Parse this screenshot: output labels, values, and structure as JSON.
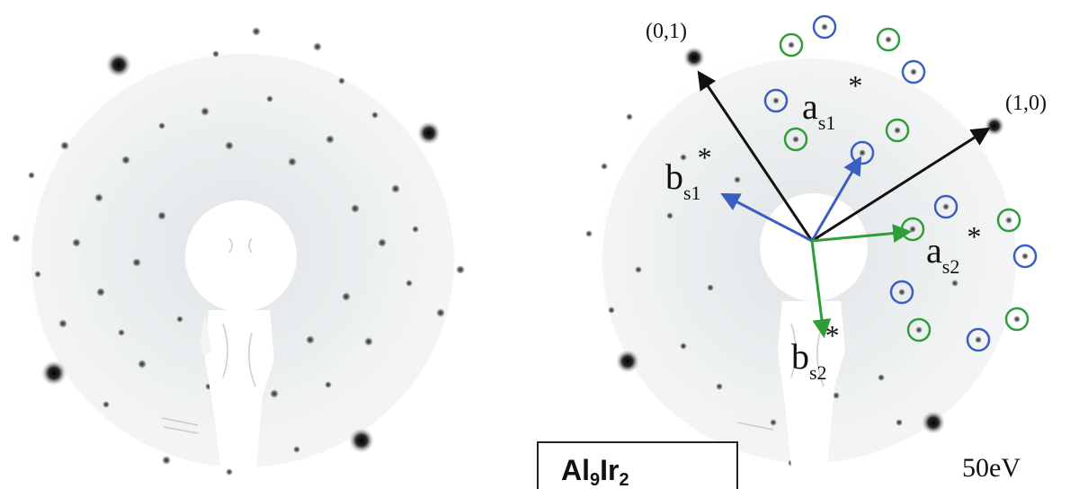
{
  "colors": {
    "primary_vectors": "#111111",
    "surface1_vectors": "#3b5fc0",
    "surface2_vectors": "#2f9e3a",
    "spot": "#1a1a1a",
    "halo": "#cfd3d6",
    "beam_stop": "#ffffff"
  },
  "labels": {
    "spot_01": "(0,1)",
    "spot_10": "(1,0)",
    "a_s1": {
      "base": "a",
      "sub": "s1",
      "sup": "*"
    },
    "b_s1": {
      "base": "b",
      "sub": "s1",
      "sup": "*"
    },
    "a_s2": {
      "base": "a",
      "sub": "s2",
      "sup": "*"
    },
    "b_s2": {
      "base": "b",
      "sub": "s2",
      "sup": "*"
    },
    "energy": "50eV",
    "material": {
      "part1": "Al",
      "sub1": "9",
      "part2": "Ir",
      "sub2": "2"
    }
  },
  "icons": {
    "left_panel": "leed-pattern-raw",
    "right_panel": "leed-pattern-annotated",
    "beam_stop": "electron-gun-shadow"
  }
}
